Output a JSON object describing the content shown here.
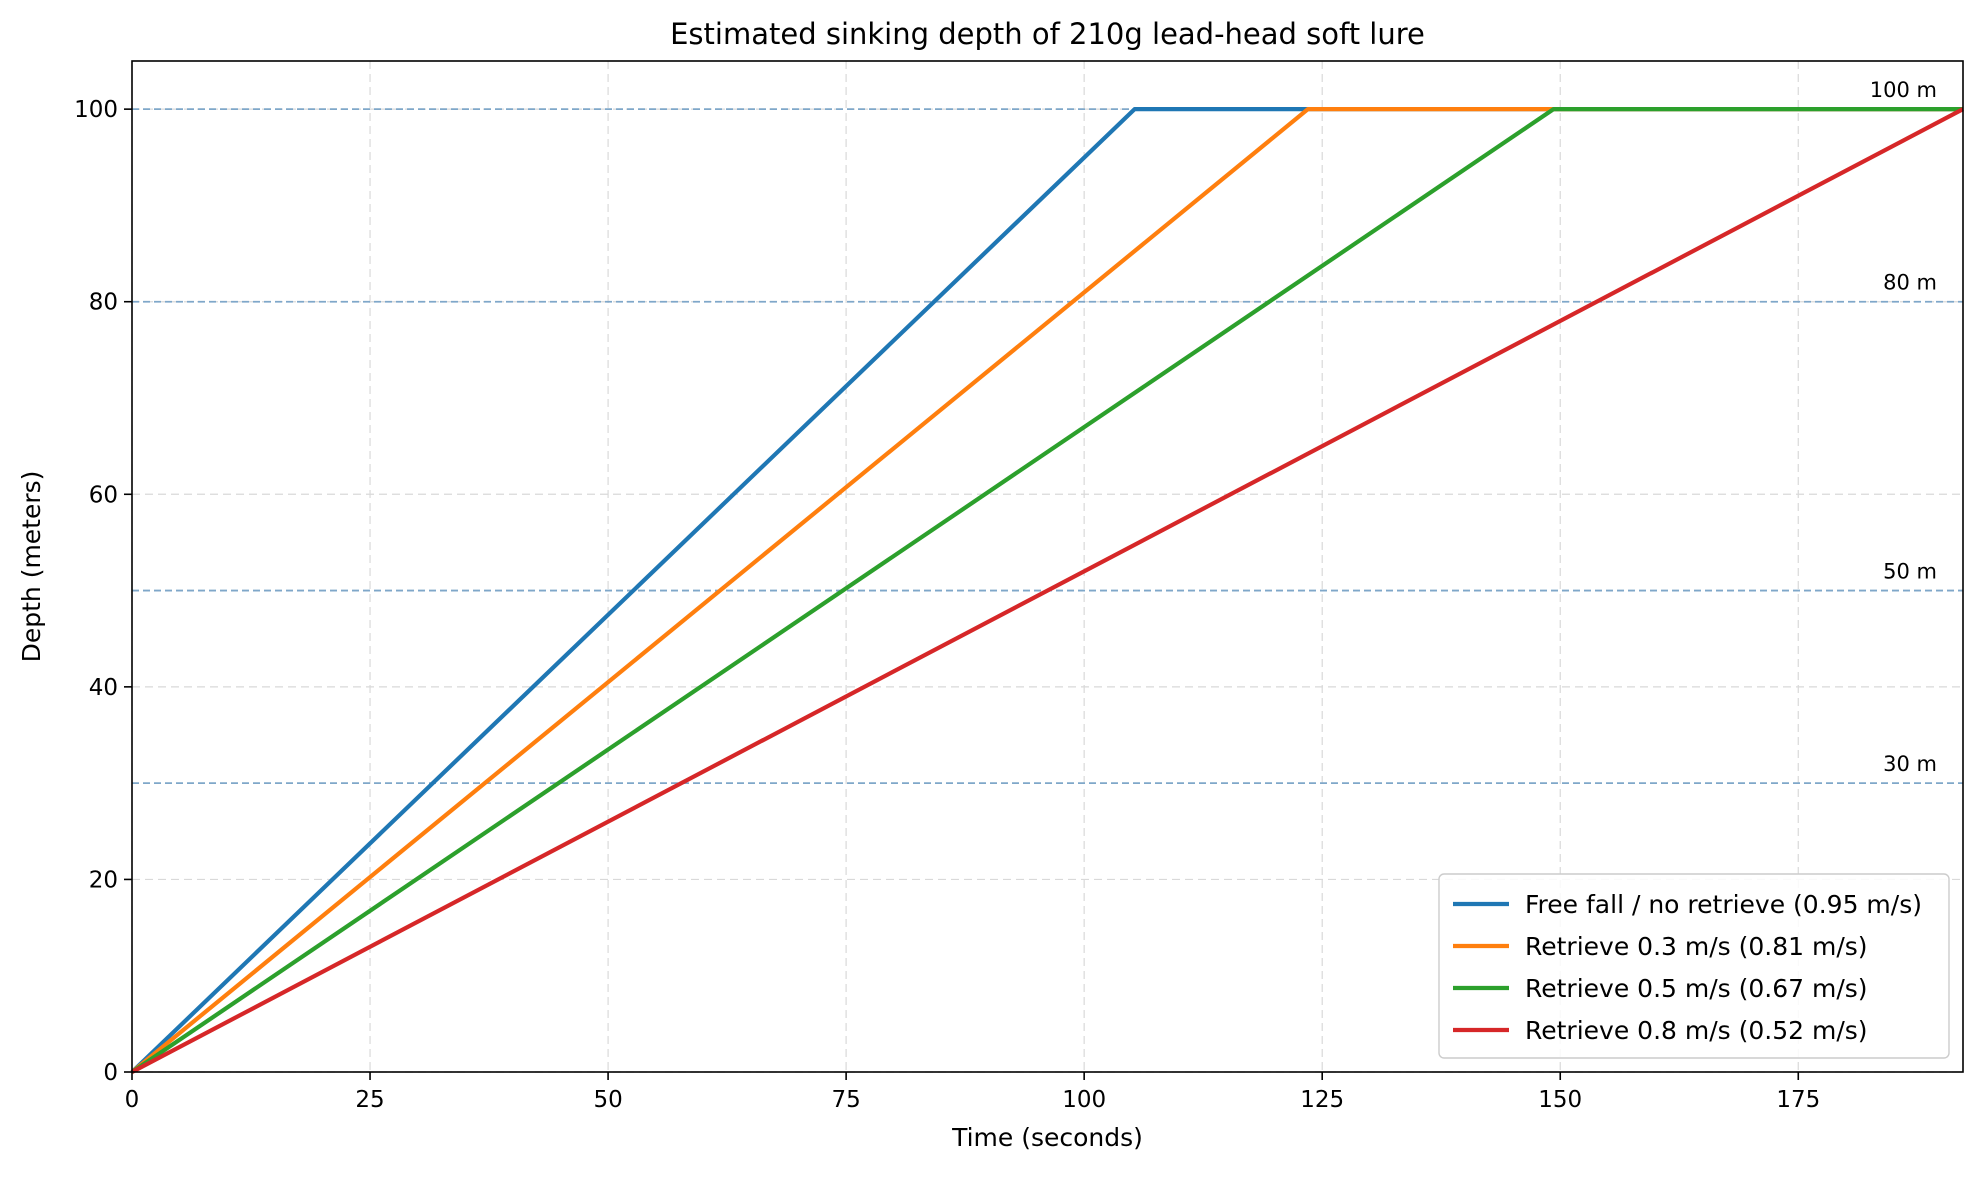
{
  "chart_data": {
    "type": "line",
    "title": "Estimated sinking depth of 210g lead-head soft lure",
    "xlabel": "Time (seconds)",
    "ylabel": "Depth (meters)",
    "xlim": [
      0,
      192.3
    ],
    "ylim": [
      0,
      105
    ],
    "xticks": [
      0,
      25,
      50,
      75,
      100,
      125,
      150,
      175
    ],
    "yticks": [
      0,
      20,
      40,
      60,
      80,
      100
    ],
    "grid": true,
    "legend_position": "lower-right",
    "reference_lines": [
      {
        "y": 100,
        "label": "100 m"
      },
      {
        "y": 80,
        "label": "80 m"
      },
      {
        "y": 50,
        "label": "50 m"
      },
      {
        "y": 30,
        "label": "30 m"
      }
    ],
    "series": [
      {
        "name": "Free fall / no retrieve (0.95 m/s)",
        "color": "#1f77b4",
        "x": [
          0,
          105.3,
          192.3
        ],
        "y": [
          0,
          100,
          100
        ]
      },
      {
        "name": "Retrieve 0.3 m/s (0.81 m/s)",
        "color": "#ff7f0e",
        "x": [
          0,
          123.5,
          192.3
        ],
        "y": [
          0,
          100,
          100
        ]
      },
      {
        "name": "Retrieve 0.5 m/s (0.67 m/s)",
        "color": "#2ca02c",
        "x": [
          0,
          149.3,
          192.3
        ],
        "y": [
          0,
          100,
          100
        ]
      },
      {
        "name": "Retrieve 0.8 m/s (0.52 m/s)",
        "color": "#d62728",
        "x": [
          0,
          192.3
        ],
        "y": [
          0,
          100
        ]
      }
    ]
  }
}
